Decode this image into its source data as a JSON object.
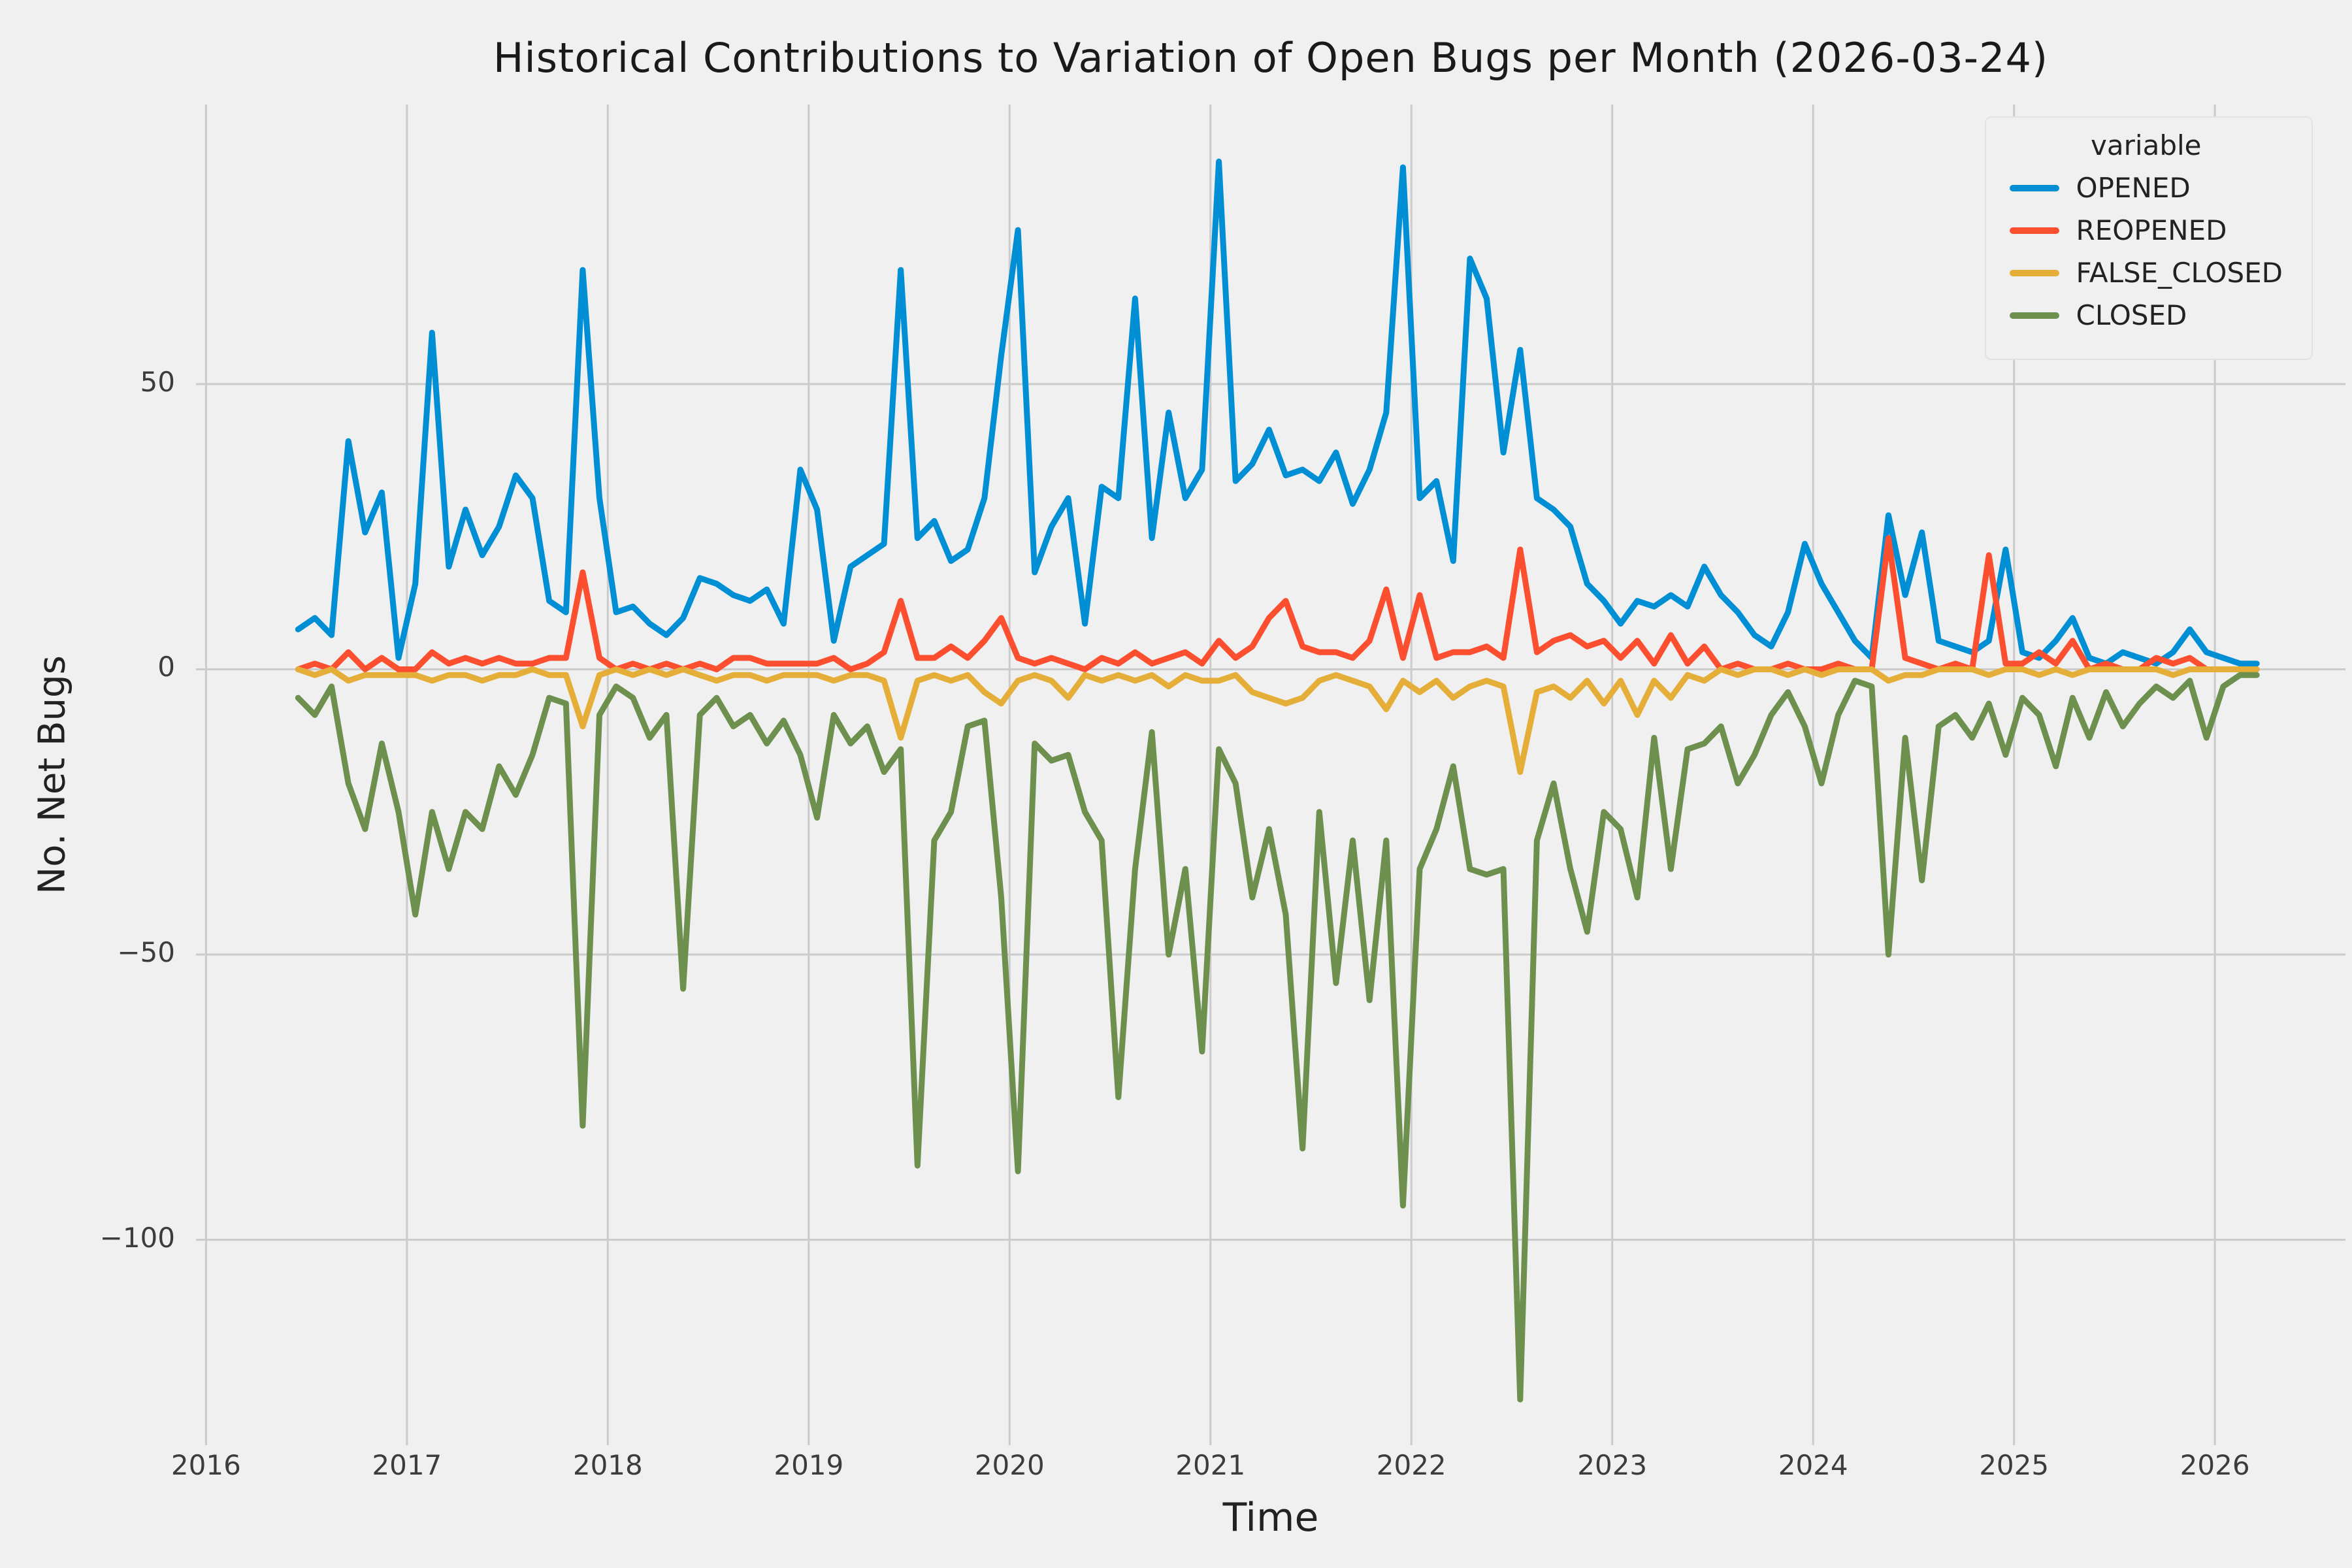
{
  "figure": {
    "title": "Historical Contributions to Variation of Open Bugs per Month (2026-03-24)",
    "xlabel": "Time",
    "ylabel": "No. Net Bugs"
  },
  "legend": {
    "title": "variable",
    "entries": [
      {
        "label": "OPENED",
        "color": "#008fd5"
      },
      {
        "label": "REOPENED",
        "color": "#fc4f30"
      },
      {
        "label": "FALSE_CLOSED",
        "color": "#e5ae38"
      },
      {
        "label": "CLOSED",
        "color": "#6d904f"
      }
    ]
  },
  "chart_data": {
    "type": "line",
    "title": "Historical Contributions to Variation of Open Bugs per Month (2026-03-24)",
    "xlabel": "Time",
    "ylabel": "No. Net Bugs",
    "xlim": [
      2015.95,
      2026.65
    ],
    "ylim": [
      -136,
      99
    ],
    "x_ticks": [
      2016,
      2017,
      2018,
      2019,
      2020,
      2021,
      2022,
      2023,
      2024,
      2025,
      2026
    ],
    "y_ticks": [
      50,
      0,
      -50,
      -100
    ],
    "grid": true,
    "legend_position": "upper right",
    "x_unit": "monthly",
    "x_start": "2016-06",
    "x_start_decimal_year": 2016.4583,
    "x_step_years": 0.0833333,
    "series": [
      {
        "name": "OPENED",
        "color": "#008fd5",
        "values": [
          7,
          9,
          6,
          40,
          24,
          31,
          2,
          15,
          59,
          18,
          28,
          20,
          25,
          34,
          30,
          12,
          10,
          70,
          30,
          10,
          11,
          8,
          6,
          9,
          16,
          15,
          13,
          12,
          14,
          8,
          35,
          28,
          5,
          18,
          20,
          22,
          70,
          23,
          26,
          19,
          21,
          30,
          55,
          77,
          17,
          25,
          30,
          8,
          32,
          30,
          65,
          23,
          45,
          30,
          35,
          89,
          33,
          36,
          42,
          34,
          35,
          33,
          38,
          29,
          35,
          45,
          88,
          30,
          33,
          19,
          72,
          65,
          38,
          56,
          30,
          28,
          25,
          15,
          12,
          8,
          12,
          11,
          13,
          11,
          18,
          13,
          10,
          6,
          4,
          10,
          22,
          15,
          10,
          5,
          2,
          27,
          13,
          24,
          5,
          4,
          3,
          5,
          21,
          3,
          2,
          5,
          9,
          2,
          1,
          3,
          2,
          1,
          3,
          7,
          3,
          2,
          1,
          1
        ]
      },
      {
        "name": "REOPENED",
        "color": "#fc4f30",
        "values": [
          0,
          1,
          0,
          3,
          0,
          2,
          0,
          0,
          3,
          1,
          2,
          1,
          2,
          1,
          1,
          2,
          2,
          17,
          2,
          0,
          1,
          0,
          1,
          0,
          1,
          0,
          2,
          2,
          1,
          1,
          1,
          1,
          2,
          0,
          1,
          3,
          12,
          2,
          2,
          4,
          2,
          5,
          9,
          2,
          1,
          2,
          1,
          0,
          2,
          1,
          3,
          1,
          2,
          3,
          1,
          5,
          2,
          4,
          9,
          12,
          4,
          3,
          3,
          2,
          5,
          14,
          2,
          13,
          2,
          3,
          3,
          4,
          2,
          21,
          3,
          5,
          6,
          4,
          5,
          2,
          5,
          1,
          6,
          1,
          4,
          0,
          1,
          0,
          0,
          1,
          0,
          0,
          1,
          0,
          0,
          23,
          2,
          1,
          0,
          1,
          0,
          20,
          1,
          1,
          3,
          1,
          5,
          0,
          1,
          0,
          0,
          2,
          1,
          2,
          0,
          0,
          0,
          0
        ]
      },
      {
        "name": "FALSE_CLOSED",
        "color": "#e5ae38",
        "values": [
          0,
          -1,
          0,
          -2,
          -1,
          -1,
          -1,
          -1,
          -2,
          -1,
          -1,
          -2,
          -1,
          -1,
          0,
          -1,
          -1,
          -10,
          -1,
          0,
          -1,
          0,
          -1,
          0,
          -1,
          -2,
          -1,
          -1,
          -2,
          -1,
          -1,
          -1,
          -2,
          -1,
          -1,
          -2,
          -12,
          -2,
          -1,
          -2,
          -1,
          -4,
          -6,
          -2,
          -1,
          -2,
          -5,
          -1,
          -2,
          -1,
          -2,
          -1,
          -3,
          -1,
          -2,
          -2,
          -1,
          -4,
          -5,
          -6,
          -5,
          -2,
          -1,
          -2,
          -3,
          -7,
          -2,
          -4,
          -2,
          -5,
          -3,
          -2,
          -3,
          -18,
          -4,
          -3,
          -5,
          -2,
          -6,
          -2,
          -8,
          -2,
          -5,
          -1,
          -2,
          0,
          -1,
          0,
          0,
          -1,
          0,
          -1,
          0,
          0,
          0,
          -2,
          -1,
          -1,
          0,
          0,
          0,
          -1,
          0,
          0,
          -1,
          0,
          -1,
          0,
          0,
          0,
          0,
          0,
          -1,
          0,
          0,
          0,
          0,
          0
        ]
      },
      {
        "name": "CLOSED",
        "color": "#6d904f",
        "values": [
          -5,
          -8,
          -3,
          -20,
          -28,
          -13,
          -25,
          -43,
          -25,
          -35,
          -25,
          -28,
          -17,
          -22,
          -15,
          -5,
          -6,
          -80,
          -8,
          -3,
          -5,
          -12,
          -8,
          -56,
          -8,
          -5,
          -10,
          -8,
          -13,
          -9,
          -15,
          -26,
          -8,
          -13,
          -10,
          -18,
          -14,
          -87,
          -30,
          -25,
          -10,
          -9,
          -40,
          -88,
          -13,
          -16,
          -15,
          -25,
          -30,
          -75,
          -35,
          -11,
          -50,
          -35,
          -67,
          -14,
          -20,
          -40,
          -28,
          -43,
          -84,
          -25,
          -55,
          -30,
          -58,
          -30,
          -94,
          -35,
          -28,
          -17,
          -35,
          -36,
          -35,
          -128,
          -30,
          -20,
          -35,
          -46,
          -25,
          -28,
          -40,
          -12,
          -35,
          -14,
          -13,
          -10,
          -20,
          -15,
          -8,
          -4,
          -10,
          -20,
          -8,
          -2,
          -3,
          -50,
          -12,
          -37,
          -10,
          -8,
          -12,
          -6,
          -15,
          -5,
          -8,
          -17,
          -5,
          -12,
          -4,
          -10,
          -6,
          -3,
          -5,
          -2,
          -12,
          -3,
          -1,
          -1
        ]
      }
    ]
  }
}
